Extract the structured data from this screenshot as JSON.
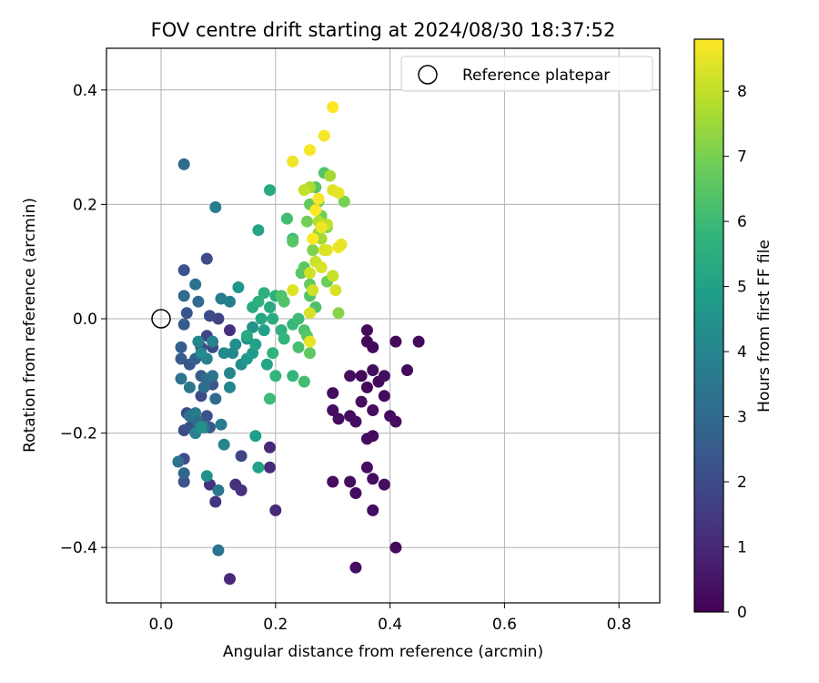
{
  "chart_data": {
    "type": "scatter",
    "title": "FOV centre drift starting at 2024/08/30 18:37:52",
    "xlabel": "Angular distance from reference (arcmin)",
    "ylabel": "Rotation from reference (arcmin)",
    "xlim": [
      -0.097,
      0.87
    ],
    "ylim": [
      -0.495,
      0.47
    ],
    "xticks": [
      0.0,
      0.2,
      0.4,
      0.6,
      0.8
    ],
    "xtick_labels": [
      "0.0",
      "0.2",
      "0.4",
      "0.6",
      "0.8"
    ],
    "yticks": [
      -0.4,
      -0.2,
      0.0,
      0.2,
      0.4
    ],
    "ytick_labels": [
      "−0.4",
      "−0.2",
      "0.0",
      "0.2",
      "0.4"
    ],
    "grid": true,
    "legend": {
      "position": "top-right",
      "entries": [
        {
          "label": "Reference platepar",
          "marker": "open-circle",
          "x": 0.0,
          "y": 0.0
        }
      ]
    },
    "colorbar": {
      "label": "Hours from first FF file",
      "range": [
        0,
        8.8
      ],
      "ticks": [
        0,
        1,
        2,
        3,
        4,
        5,
        6,
        7,
        8
      ],
      "tick_labels": [
        "0",
        "1",
        "2",
        "3",
        "4",
        "5",
        "6",
        "7",
        "8"
      ],
      "colormap": "viridis"
    },
    "points": [
      {
        "x": 0.3,
        "y": -0.13,
        "h": 0.3
      },
      {
        "x": 0.33,
        "y": -0.1,
        "h": 0.3
      },
      {
        "x": 0.35,
        "y": -0.1,
        "h": 0.2
      },
      {
        "x": 0.36,
        "y": -0.12,
        "h": 0.2
      },
      {
        "x": 0.37,
        "y": -0.09,
        "h": 0.3
      },
      {
        "x": 0.38,
        "y": -0.11,
        "h": 0.2
      },
      {
        "x": 0.39,
        "y": -0.1,
        "h": 0.3
      },
      {
        "x": 0.36,
        "y": -0.02,
        "h": 0.2
      },
      {
        "x": 0.36,
        "y": -0.04,
        "h": 0.2
      },
      {
        "x": 0.37,
        "y": -0.05,
        "h": 0.2
      },
      {
        "x": 0.41,
        "y": -0.04,
        "h": 0.2
      },
      {
        "x": 0.45,
        "y": -0.04,
        "h": 0.2
      },
      {
        "x": 0.43,
        "y": -0.09,
        "h": 0.2
      },
      {
        "x": 0.39,
        "y": -0.135,
        "h": 0.3
      },
      {
        "x": 0.35,
        "y": -0.145,
        "h": 0.3
      },
      {
        "x": 0.3,
        "y": -0.16,
        "h": 0.3
      },
      {
        "x": 0.31,
        "y": -0.175,
        "h": 0.3
      },
      {
        "x": 0.33,
        "y": -0.17,
        "h": 0.3
      },
      {
        "x": 0.34,
        "y": -0.18,
        "h": 0.3
      },
      {
        "x": 0.37,
        "y": -0.16,
        "h": 0.3
      },
      {
        "x": 0.4,
        "y": -0.17,
        "h": 0.3
      },
      {
        "x": 0.41,
        "y": -0.18,
        "h": 0.3
      },
      {
        "x": 0.36,
        "y": -0.21,
        "h": 0.3
      },
      {
        "x": 0.37,
        "y": -0.205,
        "h": 0.3
      },
      {
        "x": 0.36,
        "y": -0.26,
        "h": 0.3
      },
      {
        "x": 0.37,
        "y": -0.28,
        "h": 0.3
      },
      {
        "x": 0.33,
        "y": -0.285,
        "h": 0.3
      },
      {
        "x": 0.3,
        "y": -0.285,
        "h": 0.3
      },
      {
        "x": 0.34,
        "y": -0.305,
        "h": 0.3
      },
      {
        "x": 0.39,
        "y": -0.29,
        "h": 0.3
      },
      {
        "x": 0.37,
        "y": -0.335,
        "h": 0.3
      },
      {
        "x": 0.41,
        "y": -0.4,
        "h": 0.2
      },
      {
        "x": 0.34,
        "y": -0.435,
        "h": 0.3
      },
      {
        "x": 0.19,
        "y": -0.225,
        "h": 1.0
      },
      {
        "x": 0.19,
        "y": -0.26,
        "h": 1.1
      },
      {
        "x": 0.2,
        "y": -0.335,
        "h": 1.0
      },
      {
        "x": 0.13,
        "y": -0.29,
        "h": 1.2
      },
      {
        "x": 0.14,
        "y": -0.3,
        "h": 1.3
      },
      {
        "x": 0.095,
        "y": -0.32,
        "h": 1.4
      },
      {
        "x": 0.085,
        "y": -0.29,
        "h": 1.3
      },
      {
        "x": 0.12,
        "y": -0.455,
        "h": 1.0
      },
      {
        "x": 0.12,
        "y": -0.02,
        "h": 1.2
      },
      {
        "x": 0.14,
        "y": -0.24,
        "h": 1.8
      },
      {
        "x": 0.04,
        "y": -0.245,
        "h": 2.0
      },
      {
        "x": 0.04,
        "y": -0.285,
        "h": 2.2
      },
      {
        "x": 0.04,
        "y": -0.195,
        "h": 2.0
      },
      {
        "x": 0.05,
        "y": -0.19,
        "h": 2.2
      },
      {
        "x": 0.06,
        "y": -0.175,
        "h": 2.4
      },
      {
        "x": 0.045,
        "y": -0.165,
        "h": 2.1
      },
      {
        "x": 0.065,
        "y": -0.19,
        "h": 2.5
      },
      {
        "x": 0.07,
        "y": -0.135,
        "h": 2.0
      },
      {
        "x": 0.08,
        "y": -0.17,
        "h": 2.2
      },
      {
        "x": 0.085,
        "y": -0.19,
        "h": 2.4
      },
      {
        "x": 0.09,
        "y": -0.115,
        "h": 2.3
      },
      {
        "x": 0.08,
        "y": -0.03,
        "h": 1.8
      },
      {
        "x": 0.07,
        "y": -0.05,
        "h": 1.9
      },
      {
        "x": 0.09,
        "y": -0.05,
        "h": 2.0
      },
      {
        "x": 0.1,
        "y": 0.0,
        "h": 1.8
      },
      {
        "x": 0.085,
        "y": 0.005,
        "h": 2.1
      },
      {
        "x": 0.08,
        "y": 0.105,
        "h": 2.0
      },
      {
        "x": 0.04,
        "y": 0.085,
        "h": 2.2
      },
      {
        "x": 0.045,
        "y": 0.01,
        "h": 2.3
      },
      {
        "x": 0.04,
        "y": -0.01,
        "h": 2.5
      },
      {
        "x": 0.04,
        "y": 0.04,
        "h": 3.0
      },
      {
        "x": 0.035,
        "y": -0.05,
        "h": 2.6
      },
      {
        "x": 0.035,
        "y": -0.07,
        "h": 2.5
      },
      {
        "x": 0.05,
        "y": -0.08,
        "h": 2.4
      },
      {
        "x": 0.06,
        "y": -0.07,
        "h": 2.7
      },
      {
        "x": 0.07,
        "y": -0.1,
        "h": 2.6
      },
      {
        "x": 0.04,
        "y": -0.27,
        "h": 2.9
      },
      {
        "x": 0.03,
        "y": -0.25,
        "h": 3.3
      },
      {
        "x": 0.04,
        "y": 0.27,
        "h": 3.0
      },
      {
        "x": 0.06,
        "y": 0.06,
        "h": 3.2
      },
      {
        "x": 0.065,
        "y": 0.03,
        "h": 3.0
      },
      {
        "x": 0.035,
        "y": -0.105,
        "h": 3.3
      },
      {
        "x": 0.05,
        "y": -0.12,
        "h": 3.5
      },
      {
        "x": 0.075,
        "y": -0.12,
        "h": 3.2
      },
      {
        "x": 0.08,
        "y": -0.105,
        "h": 3.1
      },
      {
        "x": 0.09,
        "y": -0.1,
        "h": 3.4
      },
      {
        "x": 0.095,
        "y": -0.14,
        "h": 3.0
      },
      {
        "x": 0.05,
        "y": -0.17,
        "h": 3.4
      },
      {
        "x": 0.06,
        "y": -0.165,
        "h": 3.6
      },
      {
        "x": 0.065,
        "y": -0.18,
        "h": 3.2
      },
      {
        "x": 0.075,
        "y": -0.19,
        "h": 3.5
      },
      {
        "x": 0.105,
        "y": -0.185,
        "h": 3.7
      },
      {
        "x": 0.06,
        "y": -0.2,
        "h": 3.9
      },
      {
        "x": 0.095,
        "y": 0.195,
        "h": 3.8
      },
      {
        "x": 0.1,
        "y": -0.3,
        "h": 3.5
      },
      {
        "x": 0.1,
        "y": -0.405,
        "h": 3.3
      },
      {
        "x": 0.105,
        "y": 0.035,
        "h": 3.7
      },
      {
        "x": 0.12,
        "y": 0.03,
        "h": 3.8
      },
      {
        "x": 0.09,
        "y": -0.04,
        "h": 3.9
      },
      {
        "x": 0.08,
        "y": -0.07,
        "h": 3.9
      },
      {
        "x": 0.065,
        "y": -0.04,
        "h": 4.0
      },
      {
        "x": 0.07,
        "y": -0.06,
        "h": 4.2
      },
      {
        "x": 0.11,
        "y": -0.06,
        "h": 4.2
      },
      {
        "x": 0.12,
        "y": -0.095,
        "h": 4.1
      },
      {
        "x": 0.12,
        "y": -0.12,
        "h": 4.0
      },
      {
        "x": 0.125,
        "y": -0.06,
        "h": 4.1
      },
      {
        "x": 0.13,
        "y": -0.045,
        "h": 4.3
      },
      {
        "x": 0.14,
        "y": -0.08,
        "h": 4.3
      },
      {
        "x": 0.11,
        "y": -0.22,
        "h": 4.0
      },
      {
        "x": 0.08,
        "y": -0.275,
        "h": 4.5
      },
      {
        "x": 0.07,
        "y": -0.19,
        "h": 4.4
      },
      {
        "x": 0.135,
        "y": 0.055,
        "h": 4.6
      },
      {
        "x": 0.15,
        "y": -0.035,
        "h": 4.4
      },
      {
        "x": 0.16,
        "y": -0.015,
        "h": 4.5
      },
      {
        "x": 0.15,
        "y": -0.07,
        "h": 4.7
      },
      {
        "x": 0.16,
        "y": -0.06,
        "h": 4.8
      },
      {
        "x": 0.165,
        "y": -0.205,
        "h": 4.9
      },
      {
        "x": 0.17,
        "y": -0.26,
        "h": 5.0
      },
      {
        "x": 0.165,
        "y": -0.045,
        "h": 5.0
      },
      {
        "x": 0.17,
        "y": 0.155,
        "h": 5.1
      },
      {
        "x": 0.19,
        "y": 0.225,
        "h": 5.3
      },
      {
        "x": 0.18,
        "y": -0.02,
        "h": 5.0
      },
      {
        "x": 0.185,
        "y": -0.08,
        "h": 5.1
      },
      {
        "x": 0.175,
        "y": 0.0,
        "h": 5.2
      },
      {
        "x": 0.19,
        "y": 0.02,
        "h": 5.3
      },
      {
        "x": 0.195,
        "y": 0.0,
        "h": 5.4
      },
      {
        "x": 0.15,
        "y": -0.03,
        "h": 5.3
      },
      {
        "x": 0.17,
        "y": 0.03,
        "h": 5.6
      },
      {
        "x": 0.16,
        "y": 0.02,
        "h": 5.4
      },
      {
        "x": 0.18,
        "y": 0.045,
        "h": 5.6
      },
      {
        "x": 0.2,
        "y": 0.04,
        "h": 5.5
      },
      {
        "x": 0.21,
        "y": -0.02,
        "h": 5.6
      },
      {
        "x": 0.215,
        "y": -0.035,
        "h": 5.8
      },
      {
        "x": 0.195,
        "y": -0.06,
        "h": 5.7
      },
      {
        "x": 0.2,
        "y": -0.1,
        "h": 5.8
      },
      {
        "x": 0.19,
        "y": -0.14,
        "h": 6.0
      },
      {
        "x": 0.23,
        "y": -0.01,
        "h": 5.9
      },
      {
        "x": 0.23,
        "y": -0.1,
        "h": 5.8
      },
      {
        "x": 0.23,
        "y": 0.14,
        "h": 6.0
      },
      {
        "x": 0.24,
        "y": 0.0,
        "h": 6.0
      },
      {
        "x": 0.25,
        "y": -0.11,
        "h": 6.1
      },
      {
        "x": 0.25,
        "y": -0.02,
        "h": 6.3
      },
      {
        "x": 0.24,
        "y": -0.05,
        "h": 6.2
      },
      {
        "x": 0.26,
        "y": 0.04,
        "h": 6.4
      },
      {
        "x": 0.27,
        "y": 0.02,
        "h": 6.3
      },
      {
        "x": 0.22,
        "y": 0.175,
        "h": 6.1
      },
      {
        "x": 0.21,
        "y": 0.04,
        "h": 6.3
      },
      {
        "x": 0.215,
        "y": 0.03,
        "h": 6.4
      },
      {
        "x": 0.23,
        "y": 0.135,
        "h": 6.5
      },
      {
        "x": 0.245,
        "y": 0.08,
        "h": 6.5
      },
      {
        "x": 0.25,
        "y": 0.09,
        "h": 6.6
      },
      {
        "x": 0.26,
        "y": 0.06,
        "h": 6.7
      },
      {
        "x": 0.255,
        "y": -0.03,
        "h": 6.5
      },
      {
        "x": 0.26,
        "y": -0.06,
        "h": 6.6
      },
      {
        "x": 0.285,
        "y": 0.255,
        "h": 6.4
      },
      {
        "x": 0.3,
        "y": 0.075,
        "h": 6.7
      },
      {
        "x": 0.29,
        "y": 0.065,
        "h": 6.8
      },
      {
        "x": 0.27,
        "y": 0.23,
        "h": 6.5
      },
      {
        "x": 0.275,
        "y": 0.205,
        "h": 6.8
      },
      {
        "x": 0.28,
        "y": 0.18,
        "h": 6.9
      },
      {
        "x": 0.255,
        "y": 0.17,
        "h": 6.9
      },
      {
        "x": 0.26,
        "y": 0.2,
        "h": 6.7
      },
      {
        "x": 0.32,
        "y": 0.205,
        "h": 7.0
      },
      {
        "x": 0.31,
        "y": 0.01,
        "h": 7.2
      },
      {
        "x": 0.265,
        "y": 0.12,
        "h": 7.1
      },
      {
        "x": 0.29,
        "y": 0.16,
        "h": 7.2
      },
      {
        "x": 0.275,
        "y": 0.15,
        "h": 7.4
      },
      {
        "x": 0.295,
        "y": 0.25,
        "h": 7.6
      },
      {
        "x": 0.26,
        "y": 0.23,
        "h": 7.7
      },
      {
        "x": 0.25,
        "y": 0.225,
        "h": 8.0
      },
      {
        "x": 0.28,
        "y": 0.14,
        "h": 7.6
      },
      {
        "x": 0.275,
        "y": 0.17,
        "h": 7.8
      },
      {
        "x": 0.29,
        "y": 0.165,
        "h": 8.0
      },
      {
        "x": 0.27,
        "y": 0.1,
        "h": 8.1
      },
      {
        "x": 0.26,
        "y": 0.08,
        "h": 8.2
      },
      {
        "x": 0.3,
        "y": 0.075,
        "h": 8.1
      },
      {
        "x": 0.305,
        "y": 0.05,
        "h": 8.3
      },
      {
        "x": 0.265,
        "y": 0.05,
        "h": 8.2
      },
      {
        "x": 0.26,
        "y": 0.01,
        "h": 8.3
      },
      {
        "x": 0.26,
        "y": -0.04,
        "h": 8.5
      },
      {
        "x": 0.23,
        "y": 0.05,
        "h": 8.4
      },
      {
        "x": 0.28,
        "y": 0.09,
        "h": 8.3
      },
      {
        "x": 0.29,
        "y": 0.12,
        "h": 8.5
      },
      {
        "x": 0.285,
        "y": 0.12,
        "h": 8.3
      },
      {
        "x": 0.31,
        "y": 0.125,
        "h": 8.6
      },
      {
        "x": 0.315,
        "y": 0.13,
        "h": 8.5
      },
      {
        "x": 0.3,
        "y": 0.225,
        "h": 8.4
      },
      {
        "x": 0.31,
        "y": 0.22,
        "h": 8.5
      },
      {
        "x": 0.23,
        "y": 0.275,
        "h": 8.6
      },
      {
        "x": 0.26,
        "y": 0.295,
        "h": 8.7
      },
      {
        "x": 0.285,
        "y": 0.32,
        "h": 8.7
      },
      {
        "x": 0.3,
        "y": 0.37,
        "h": 8.8
      },
      {
        "x": 0.275,
        "y": 0.21,
        "h": 8.7
      },
      {
        "x": 0.27,
        "y": 0.19,
        "h": 8.8
      },
      {
        "x": 0.28,
        "y": 0.16,
        "h": 8.6
      },
      {
        "x": 0.265,
        "y": 0.14,
        "h": 8.8
      }
    ]
  }
}
